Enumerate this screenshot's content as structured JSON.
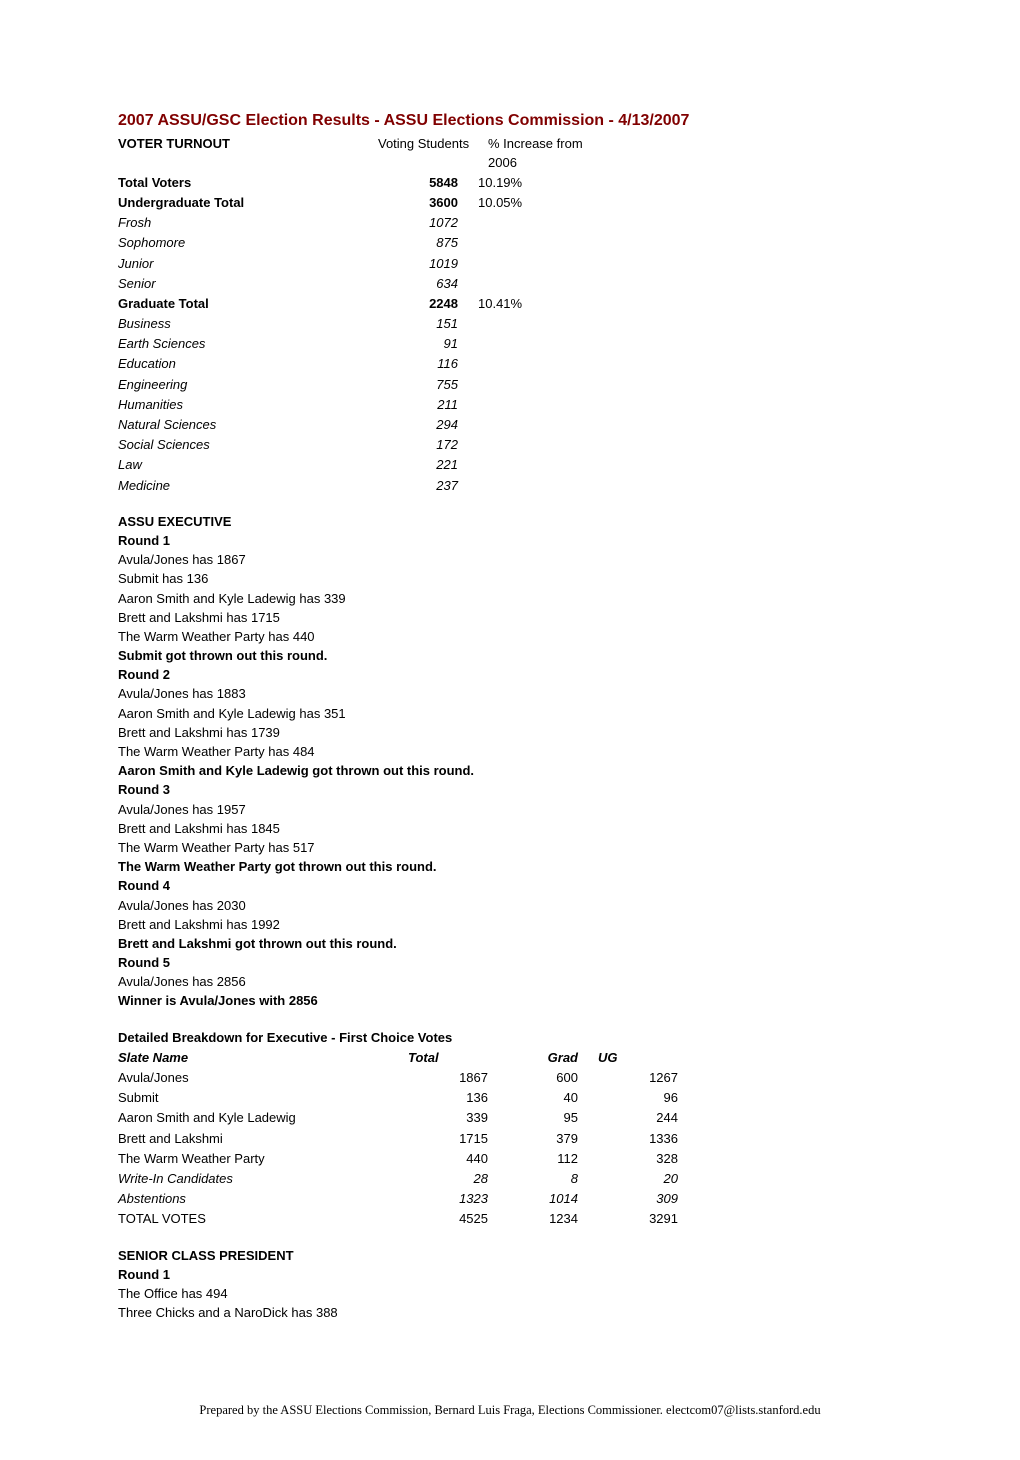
{
  "title": "2007 ASSU/GSC Election Results - ASSU Elections Commission - 4/13/2007",
  "turnout": {
    "header_label": "VOTER TURNOUT",
    "header_col1": "Voting Students",
    "header_col2": "% Increase from 2006",
    "rows": [
      {
        "label": "Total Voters",
        "n": "5848",
        "pct": "10.19%",
        "bold": true
      },
      {
        "label": "Undergraduate Total",
        "n": "3600",
        "pct": "10.05%",
        "bold": true
      },
      {
        "label": "Frosh",
        "n": "1072",
        "pct": "",
        "italic": true
      },
      {
        "label": "Sophomore",
        "n": "875",
        "pct": "",
        "italic": true
      },
      {
        "label": "Junior",
        "n": "1019",
        "pct": "",
        "italic": true
      },
      {
        "label": "Senior",
        "n": "634",
        "pct": "",
        "italic": true
      },
      {
        "label": "Graduate Total",
        "n": "2248",
        "pct": "10.41%",
        "bold": true
      },
      {
        "label": "Business",
        "n": "151",
        "pct": "",
        "italic": true
      },
      {
        "label": "Earth Sciences",
        "n": "91",
        "pct": "",
        "italic": true
      },
      {
        "label": "Education",
        "n": "116",
        "pct": "",
        "italic": true
      },
      {
        "label": "Engineering",
        "n": "755",
        "pct": "",
        "italic": true
      },
      {
        "label": "Humanities",
        "n": "211",
        "pct": "",
        "italic": true
      },
      {
        "label": "Natural Sciences",
        "n": "294",
        "pct": "",
        "italic": true
      },
      {
        "label": "Social Sciences",
        "n": "172",
        "pct": "",
        "italic": true
      },
      {
        "label": "Law",
        "n": "221",
        "pct": "",
        "italic": true
      },
      {
        "label": "Medicine",
        "n": "237",
        "pct": "",
        "italic": true
      }
    ]
  },
  "executive": {
    "heading": "ASSU EXECUTIVE",
    "lines": [
      {
        "text": "Round 1",
        "bold": true
      },
      {
        "text": "Avula/Jones has 1867"
      },
      {
        "text": "Submit has 136"
      },
      {
        "text": "Aaron Smith and Kyle Ladewig has 339"
      },
      {
        "text": "Brett and Lakshmi has 1715"
      },
      {
        "text": "The Warm Weather Party has 440"
      },
      {
        "text": "Submit got thrown out this round.",
        "bold": true
      },
      {
        "text": "Round 2",
        "bold": true
      },
      {
        "text": "Avula/Jones has 1883"
      },
      {
        "text": "Aaron Smith and Kyle Ladewig has 351"
      },
      {
        "text": "Brett and Lakshmi has 1739"
      },
      {
        "text": "The Warm Weather Party has 484"
      },
      {
        "text": "Aaron Smith and Kyle Ladewig got thrown out this round.",
        "bold": true
      },
      {
        "text": "Round 3",
        "bold": true
      },
      {
        "text": "Avula/Jones has 1957"
      },
      {
        "text": "Brett and Lakshmi has 1845"
      },
      {
        "text": "The Warm Weather Party has 517"
      },
      {
        "text": "The Warm Weather Party got thrown out this round.",
        "bold": true
      },
      {
        "text": "Round 4",
        "bold": true
      },
      {
        "text": "Avula/Jones has 2030"
      },
      {
        "text": "Brett and Lakshmi has 1992"
      },
      {
        "text": "Brett and Lakshmi got thrown out this round.",
        "bold": true
      },
      {
        "text": "Round 5",
        "bold": true
      },
      {
        "text": "Avula/Jones has 2856"
      },
      {
        "text": "Winner is  Avula/Jones with 2856",
        "bold": true
      }
    ]
  },
  "breakdown": {
    "heading": "Detailed Breakdown for Executive - First Choice Votes",
    "header": {
      "label": "Slate Name",
      "total": "Total",
      "grad": "Grad",
      "ug": "UG"
    },
    "rows": [
      {
        "label": "Avula/Jones",
        "total": "1867",
        "grad": "600",
        "ug": "1267"
      },
      {
        "label": "Submit",
        "total": "136",
        "grad": "40",
        "ug": "96"
      },
      {
        "label": "Aaron Smith and Kyle Ladewig",
        "total": "339",
        "grad": "95",
        "ug": "244"
      },
      {
        "label": "Brett and Lakshmi",
        "total": "1715",
        "grad": "379",
        "ug": "1336"
      },
      {
        "label": "The Warm Weather Party",
        "total": "440",
        "grad": "112",
        "ug": "328"
      },
      {
        "label": "Write-In Candidates",
        "total": "28",
        "grad": "8",
        "ug": "20",
        "italic": true
      },
      {
        "label": "Abstentions",
        "total": "1323",
        "grad": "1014",
        "ug": "309",
        "italic": true
      },
      {
        "label": "TOTAL VOTES",
        "total": "4525",
        "grad": "1234",
        "ug": "3291"
      }
    ]
  },
  "senior": {
    "heading": "SENIOR CLASS PRESIDENT",
    "lines": [
      {
        "text": "Round 1",
        "bold": true
      },
      {
        "text": "The Office has 494"
      },
      {
        "text": "Three Chicks and a NaroDick has 388"
      }
    ]
  },
  "footer": "Prepared by the ASSU Elections Commission, Bernard Luis Fraga, Elections Commissioner. electcom07@lists.stanford.edu"
}
